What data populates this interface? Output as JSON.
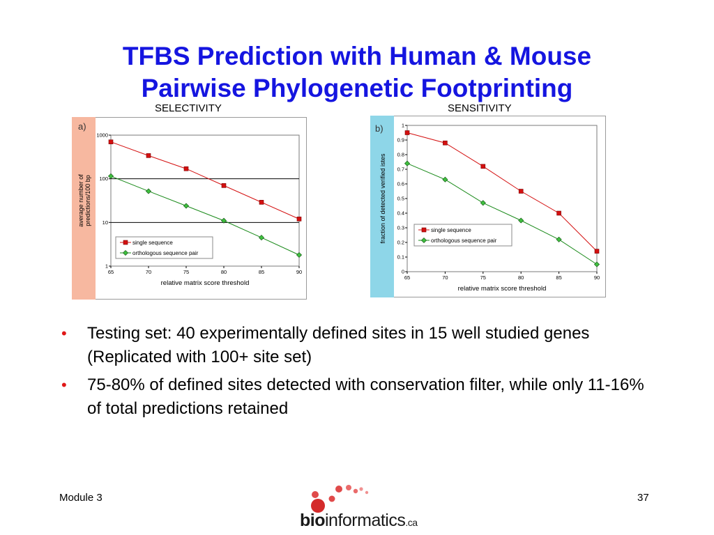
{
  "slide": {
    "title_line1": "TFBS Prediction with Human & Mouse",
    "title_line2": "Pairwise Phylogenetic Footprinting",
    "footer_left": "Module 3",
    "page_number": "37",
    "bullets": [
      "Testing set: 40 experimentally defined sites in 15 well studied genes (Replicated with 100+ site set)",
      "75-80% of defined sites detected with conservation filter, while only 11-16% of total predictions retained"
    ],
    "logo": {
      "bio": "bio",
      "rest": "informatics",
      "ca": ".ca",
      "dot_colors": [
        "#d42b2b",
        "#e04a4a",
        "#ea6b6b",
        "#f09090"
      ]
    }
  },
  "chart_data": [
    {
      "type": "line",
      "caption": "SELECTIVITY",
      "panel_label": "a)",
      "panel_color": "#f7b8a0",
      "xlabel": "relative matrix score threshold",
      "ylabel": [
        "average number of",
        "predictions/100 bp"
      ],
      "x": [
        65,
        70,
        75,
        80,
        85,
        90
      ],
      "xlim": [
        65,
        90
      ],
      "yscale": "log",
      "ylim": [
        1,
        1000
      ],
      "yticks": [
        1,
        10,
        100,
        1000
      ],
      "yticklabels": [
        "1",
        "10",
        "100",
        "1000"
      ],
      "grid": "horizontal at decades",
      "legend_position": "lower-left",
      "series": [
        {
          "name": "single sequence",
          "color": "#d41010",
          "marker": "square",
          "values": [
            700,
            340,
            170,
            70,
            29,
            12
          ]
        },
        {
          "name": "orthologous sequence pair",
          "color": "#1a8a1a",
          "marker": "diamond",
          "values": [
            115,
            52,
            24,
            11,
            4.5,
            1.8
          ]
        }
      ]
    },
    {
      "type": "line",
      "caption": "SENSITIVITY",
      "panel_label": "b)",
      "panel_color": "#8ed6e8",
      "xlabel": "relative matrix score threshold",
      "ylabel": [
        "fraction of detected verified istes"
      ],
      "x": [
        65,
        70,
        75,
        80,
        85,
        90
      ],
      "xlim": [
        65,
        90
      ],
      "yscale": "linear",
      "ylim": [
        0,
        1
      ],
      "yticks": [
        0,
        0.1,
        0.2,
        0.3,
        0.4,
        0.5,
        0.6,
        0.7,
        0.8,
        0.9,
        1
      ],
      "yticklabels": [
        "0",
        "0.1",
        "0.2",
        "0.3",
        "0.4",
        "0.5",
        "0.6",
        "0.7",
        "0.8",
        "0.9",
        "1"
      ],
      "grid": "none",
      "legend_position": "lower-left",
      "series": [
        {
          "name": "single sequence",
          "color": "#d41010",
          "marker": "square",
          "values": [
            0.95,
            0.88,
            0.72,
            0.55,
            0.4,
            0.14
          ]
        },
        {
          "name": "orthologous sequence pair",
          "color": "#1a8a1a",
          "marker": "diamond",
          "values": [
            0.74,
            0.63,
            0.47,
            0.35,
            0.22,
            0.05
          ]
        }
      ]
    }
  ]
}
